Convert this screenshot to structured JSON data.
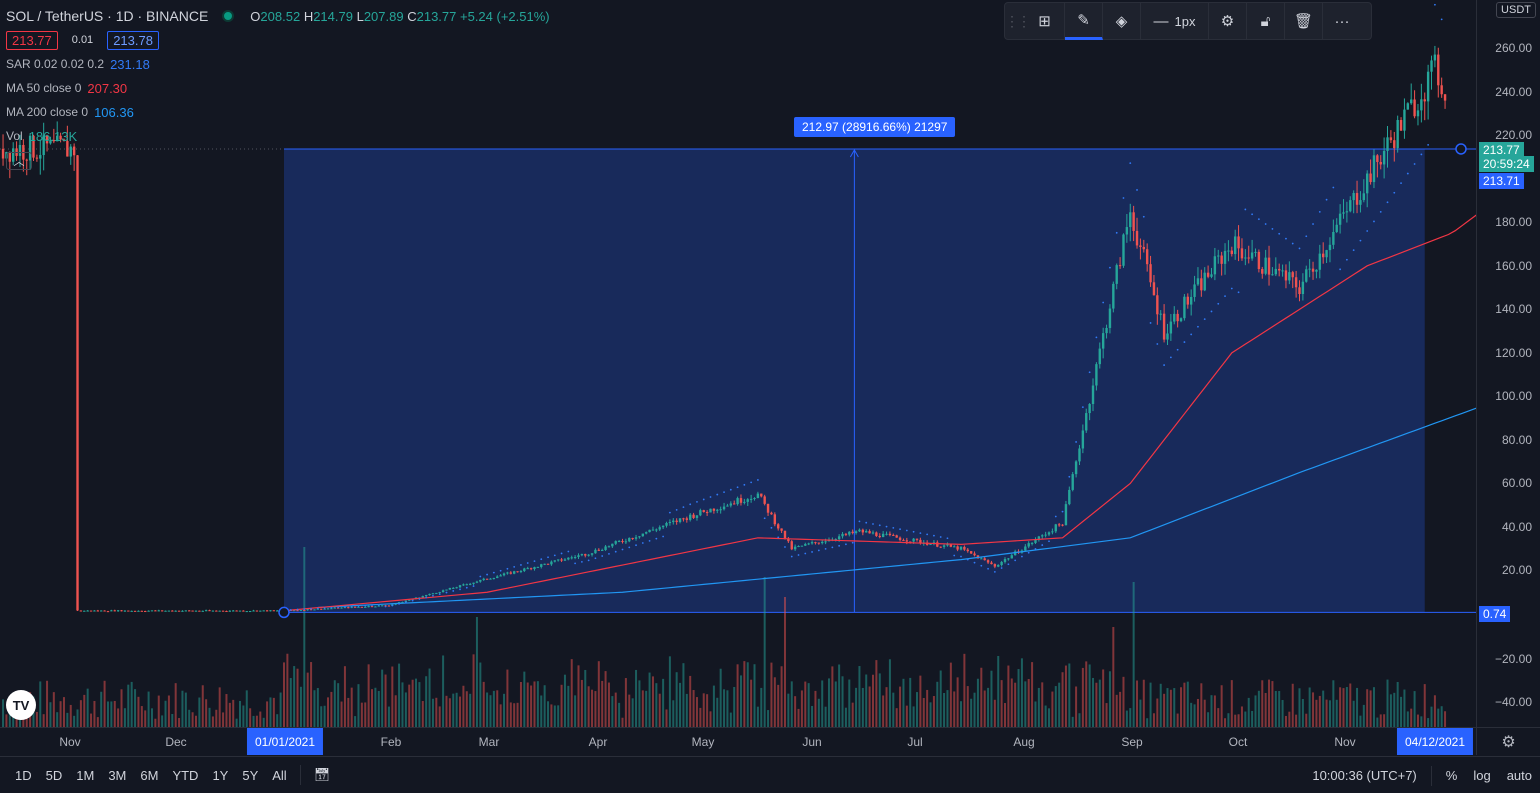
{
  "header": {
    "symbol_title": "SOL / TetherUS · 1D · BINANCE",
    "ohlc": {
      "o_label": "O",
      "o": "208.52",
      "h_label": "H",
      "h": "214.79",
      "l_label": "L",
      "l": "207.89",
      "c_label": "C",
      "c": "213.77",
      "change": "+5.24 (+2.51%)"
    },
    "sell_price": "213.77",
    "spread": "0.01",
    "buy_price": "213.78"
  },
  "indicators": [
    {
      "name": "SAR 0.02 0.02 0.2",
      "value": "231.18",
      "color": "#3179f5"
    },
    {
      "name": "MA 50 close 0",
      "value": "207.30",
      "color": "#f23645"
    },
    {
      "name": "MA 200 close 0",
      "value": "106.36",
      "color": "#2196f3"
    },
    {
      "name": "Vol",
      "value": "186.13K",
      "color": "#26a69a"
    }
  ],
  "toolbar": {
    "grip_icon": "drag-handle-icon",
    "line_width_label": "1px"
  },
  "measure_label": "212.97 (28916.66%) 21297",
  "price_axis": {
    "currency": "USDT",
    "ticks": [
      "260.00",
      "240.00",
      "220.00",
      "180.00",
      "160.00",
      "140.00",
      "120.00",
      "100.00",
      "80.00",
      "60.00",
      "40.00",
      "20.00",
      "−20.00",
      "−40.00"
    ],
    "last_price": "213.77",
    "countdown": "20:59:24",
    "measure_top": "213.71",
    "measure_bottom": "0.74"
  },
  "time_axis": {
    "months": [
      "Nov",
      "Dec",
      "Feb",
      "Mar",
      "Apr",
      "May",
      "Jun",
      "Jul",
      "Aug",
      "Sep",
      "Oct",
      "Nov"
    ],
    "start_date": "01/01/2021",
    "end_date": "04/12/2021"
  },
  "bottom_bar": {
    "ranges": [
      "1D",
      "5D",
      "1M",
      "3M",
      "6M",
      "YTD",
      "1Y",
      "5Y",
      "All"
    ],
    "clock": "10:00:36 (UTC+7)",
    "percent": "%",
    "log": "log",
    "auto": "auto"
  },
  "colors": {
    "up": "#26a69a",
    "down": "#ef5350",
    "measure_fill": "#1e3a8a",
    "accent": "#2962ff"
  },
  "chart_data": {
    "type": "candlestick",
    "series_names": [
      "SAR 0.02 0.02 0.2",
      "MA 50 close 0",
      "MA 200 close 0",
      "Vol"
    ],
    "price_path": [
      [
        -61,
        1.5
      ],
      [
        0,
        1.5
      ],
      [
        31,
        4
      ],
      [
        57,
        15
      ],
      [
        90,
        28
      ],
      [
        120,
        45
      ],
      [
        140,
        55
      ],
      [
        150,
        30
      ],
      [
        170,
        38
      ],
      [
        200,
        30
      ],
      [
        210,
        22
      ],
      [
        230,
        42
      ],
      [
        250,
        185
      ],
      [
        260,
        130
      ],
      [
        280,
        170
      ],
      [
        300,
        150
      ],
      [
        320,
        200
      ],
      [
        340,
        250
      ],
      [
        360,
        190
      ],
      [
        373,
        213.77
      ]
    ],
    "ma50_path": [
      [
        0,
        1.5
      ],
      [
        60,
        10
      ],
      [
        140,
        35
      ],
      [
        200,
        32
      ],
      [
        230,
        35
      ],
      [
        250,
        60
      ],
      [
        280,
        120
      ],
      [
        320,
        160
      ],
      [
        345,
        175
      ],
      [
        373,
        207.3
      ]
    ],
    "ma200_path": [
      [
        10,
        3
      ],
      [
        100,
        10
      ],
      [
        200,
        25
      ],
      [
        250,
        35
      ],
      [
        300,
        65
      ],
      [
        373,
        106.36
      ]
    ],
    "ylim": [
      -45,
      270
    ]
  }
}
